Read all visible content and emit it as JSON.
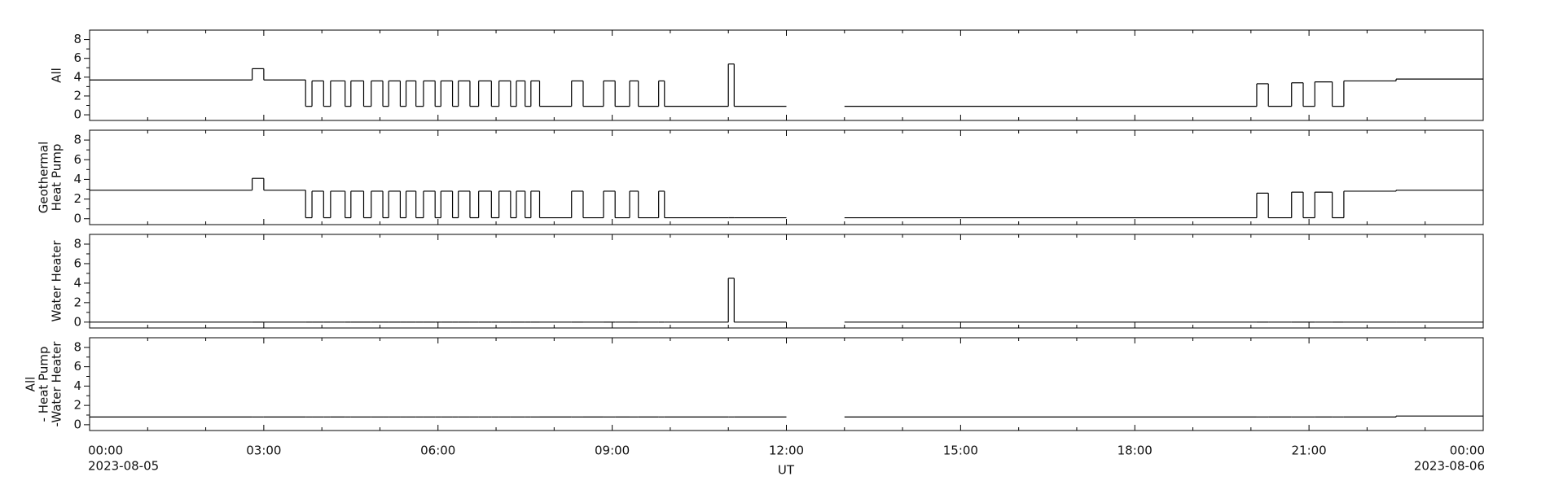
{
  "chart_data": {
    "type": "line",
    "step": "post",
    "color": "#000000",
    "xlabel": "UT",
    "start_date": "2023-08-05",
    "end_date": "2023-08-06",
    "xlim": [
      0,
      24
    ],
    "xticks": [
      {
        "value": 0,
        "label": "00:00"
      },
      {
        "value": 3,
        "label": "03:00"
      },
      {
        "value": 6,
        "label": "06:00"
      },
      {
        "value": 9,
        "label": "09:00"
      },
      {
        "value": 12,
        "label": "12:00"
      },
      {
        "value": 15,
        "label": "15:00"
      },
      {
        "value": 18,
        "label": "18:00"
      },
      {
        "value": 21,
        "label": "21:00"
      },
      {
        "value": 24,
        "label": "00:00"
      }
    ],
    "xminorticks": [
      1,
      2,
      4,
      5,
      7,
      8,
      10,
      11,
      13,
      14,
      16,
      17,
      19,
      20,
      22,
      23
    ],
    "x": [
      0,
      2.8,
      3.0,
      3.72,
      3.83,
      4.03,
      4.15,
      4.4,
      4.5,
      4.72,
      4.85,
      5.05,
      5.15,
      5.35,
      5.45,
      5.62,
      5.75,
      5.95,
      6.05,
      6.25,
      6.35,
      6.55,
      6.7,
      6.92,
      7.05,
      7.25,
      7.35,
      7.5,
      7.6,
      7.75,
      8.3,
      8.5,
      8.85,
      9.05,
      9.3,
      9.45,
      9.8,
      9.9,
      11.0,
      11.1,
      12.0,
      13.0,
      20.1,
      20.3,
      20.7,
      20.9,
      21.1,
      21.4,
      21.6,
      22.5,
      24
    ],
    "panels": [
      {
        "ylabel": [
          "All"
        ],
        "ylim": [
          -0.6,
          9
        ],
        "yticks": [
          0,
          2,
          4,
          6,
          8
        ],
        "yminorticks": [
          1,
          3,
          5,
          7
        ],
        "values": [
          3.7,
          4.9,
          3.7,
          0.9,
          3.6,
          0.9,
          3.6,
          0.9,
          3.6,
          0.9,
          3.6,
          0.9,
          3.6,
          0.9,
          3.6,
          0.9,
          3.6,
          0.9,
          3.6,
          0.9,
          3.6,
          0.9,
          3.6,
          0.9,
          3.6,
          0.9,
          3.6,
          0.9,
          3.6,
          0.9,
          3.6,
          0.9,
          3.6,
          0.9,
          3.6,
          0.9,
          3.6,
          0.9,
          5.4,
          0.9,
          null,
          0.9,
          3.3,
          0.9,
          3.4,
          0.9,
          3.5,
          0.9,
          3.6,
          3.8,
          3.8
        ]
      },
      {
        "ylabel": [
          "Geothermal",
          "Heat Pump"
        ],
        "ylim": [
          -0.6,
          9
        ],
        "yticks": [
          0,
          2,
          4,
          6,
          8
        ],
        "yminorticks": [
          1,
          3,
          5,
          7
        ],
        "values": [
          2.9,
          4.1,
          2.9,
          0.1,
          2.8,
          0.1,
          2.8,
          0.1,
          2.8,
          0.1,
          2.8,
          0.1,
          2.8,
          0.1,
          2.8,
          0.1,
          2.8,
          0.1,
          2.8,
          0.1,
          2.8,
          0.1,
          2.8,
          0.1,
          2.8,
          0.1,
          2.8,
          0.1,
          2.8,
          0.1,
          2.8,
          0.1,
          2.8,
          0.1,
          2.8,
          0.1,
          2.8,
          0.1,
          0.1,
          0.1,
          null,
          0.1,
          2.6,
          0.1,
          2.7,
          0.1,
          2.7,
          0.1,
          2.8,
          2.9,
          2.9
        ]
      },
      {
        "ylabel": [
          "Water Heater"
        ],
        "ylim": [
          -0.6,
          9
        ],
        "yticks": [
          0,
          2,
          4,
          6,
          8
        ],
        "yminorticks": [
          1,
          3,
          5,
          7
        ],
        "values": [
          0,
          0,
          0,
          0,
          0,
          0,
          0,
          0,
          0,
          0,
          0,
          0,
          0,
          0,
          0,
          0,
          0,
          0,
          0,
          0,
          0,
          0,
          0,
          0,
          0,
          0,
          0,
          0,
          0,
          0,
          0,
          0,
          0,
          0,
          0,
          0,
          0,
          0,
          4.5,
          0,
          null,
          0,
          0,
          0,
          0,
          0,
          0,
          0,
          0,
          0,
          0
        ]
      },
      {
        "ylabel": [
          "All",
          "- Heat Pump",
          "-Water Heater"
        ],
        "ylim": [
          -0.6,
          9
        ],
        "yticks": [
          0,
          2,
          4,
          6,
          8
        ],
        "yminorticks": [
          1,
          3,
          5,
          7
        ],
        "values": [
          0.8,
          0.8,
          0.8,
          0.8,
          0.8,
          0.8,
          0.8,
          0.8,
          0.8,
          0.8,
          0.8,
          0.8,
          0.8,
          0.8,
          0.8,
          0.8,
          0.8,
          0.8,
          0.8,
          0.8,
          0.8,
          0.8,
          0.8,
          0.8,
          0.8,
          0.8,
          0.8,
          0.8,
          0.8,
          0.8,
          0.8,
          0.8,
          0.8,
          0.8,
          0.8,
          0.8,
          0.8,
          0.8,
          0.8,
          0.8,
          null,
          0.8,
          0.8,
          0.8,
          0.8,
          0.8,
          0.8,
          0.8,
          0.8,
          0.9,
          0.9
        ]
      }
    ]
  }
}
